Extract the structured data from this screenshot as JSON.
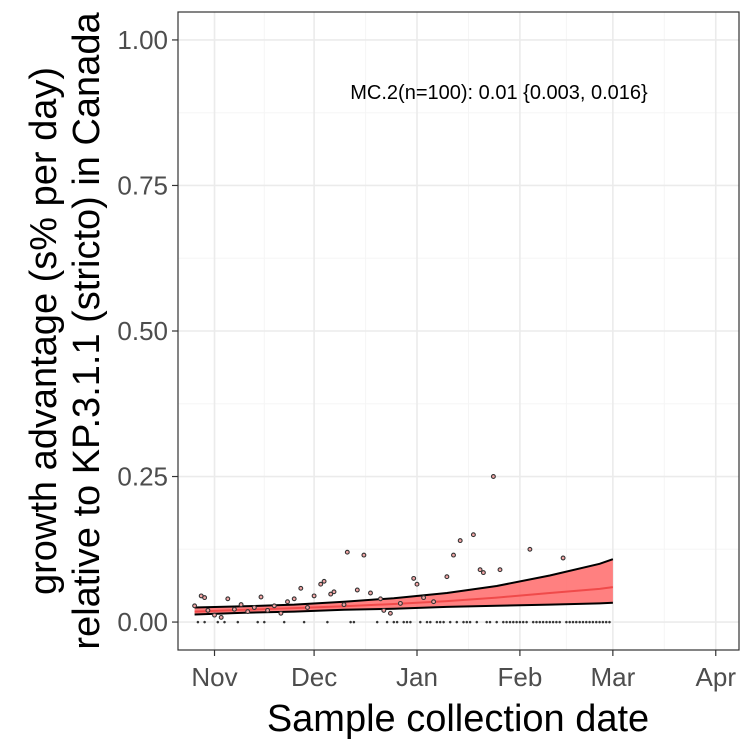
{
  "chart_data": {
    "type": "scatter",
    "xlabel": "Sample collection date",
    "ylabel_lines": [
      "growth advantage (s% per day)",
      "relative to KP.3.1.1 (stricto) in Canada"
    ],
    "annotation": "MC.2(n=100): 0.01 {0.003, 0.016}",
    "x_ticks": [
      {
        "label": "Nov",
        "date": "2024-11-01"
      },
      {
        "label": "Dec",
        "date": "2024-12-01"
      },
      {
        "label": "Jan",
        "date": "2025-01-01"
      },
      {
        "label": "Feb",
        "date": "2025-02-01"
      },
      {
        "label": "Mar",
        "date": "2025-03-01"
      },
      {
        "label": "Apr",
        "date": "2025-04-01"
      }
    ],
    "xlim": [
      "2024-10-21",
      "2025-04-08"
    ],
    "y_ticks": [
      "0.00",
      "0.25",
      "0.50",
      "0.75",
      "1.00"
    ],
    "ylim": [
      -0.048,
      1.048
    ],
    "grid": true,
    "colors": {
      "fit_line": "#f04a4a",
      "ribbon_fill": "#ff6a6a",
      "ribbon_edge": "#000000",
      "point_edge": "#333333",
      "point_fill": "#f3a6a6",
      "grid_major": "#ebebeb",
      "grid_minor": "#f5f5f5",
      "panel_border": "#333333"
    },
    "fit": {
      "x": [
        "2024-10-26",
        "2024-11-10",
        "2024-11-25",
        "2024-12-10",
        "2024-12-25",
        "2025-01-10",
        "2025-01-25",
        "2025-02-10",
        "2025-02-25",
        "2025-03-01"
      ],
      "mean": [
        0.018,
        0.021,
        0.024,
        0.027,
        0.031,
        0.036,
        0.042,
        0.05,
        0.057,
        0.06
      ],
      "lower": [
        0.013,
        0.016,
        0.018,
        0.021,
        0.023,
        0.026,
        0.028,
        0.03,
        0.032,
        0.033
      ],
      "upper": [
        0.025,
        0.027,
        0.03,
        0.035,
        0.041,
        0.05,
        0.062,
        0.08,
        0.1,
        0.108
      ]
    },
    "points": [
      {
        "x": "2024-10-26",
        "y": 0.028
      },
      {
        "x": "2024-10-28",
        "y": 0.045
      },
      {
        "x": "2024-10-29",
        "y": 0.042
      },
      {
        "x": "2024-10-30",
        "y": 0.02
      },
      {
        "x": "2024-11-01",
        "y": 0.012
      },
      {
        "x": "2024-11-03",
        "y": 0.008
      },
      {
        "x": "2024-11-05",
        "y": 0.04
      },
      {
        "x": "2024-11-07",
        "y": 0.022
      },
      {
        "x": "2024-11-09",
        "y": 0.03
      },
      {
        "x": "2024-11-11",
        "y": 0.018
      },
      {
        "x": "2024-11-13",
        "y": 0.025
      },
      {
        "x": "2024-11-15",
        "y": 0.043
      },
      {
        "x": "2024-11-17",
        "y": 0.02
      },
      {
        "x": "2024-11-19",
        "y": 0.028
      },
      {
        "x": "2024-11-21",
        "y": 0.015
      },
      {
        "x": "2024-11-23",
        "y": 0.035
      },
      {
        "x": "2024-11-25",
        "y": 0.04
      },
      {
        "x": "2024-11-27",
        "y": 0.058
      },
      {
        "x": "2024-11-29",
        "y": 0.025
      },
      {
        "x": "2024-12-01",
        "y": 0.045
      },
      {
        "x": "2024-12-03",
        "y": 0.065
      },
      {
        "x": "2024-12-04",
        "y": 0.07
      },
      {
        "x": "2024-12-06",
        "y": 0.048
      },
      {
        "x": "2024-12-07",
        "y": 0.052
      },
      {
        "x": "2024-12-10",
        "y": 0.03
      },
      {
        "x": "2024-12-11",
        "y": 0.12
      },
      {
        "x": "2024-12-14",
        "y": 0.055
      },
      {
        "x": "2024-12-16",
        "y": 0.115
      },
      {
        "x": "2024-12-18",
        "y": 0.05
      },
      {
        "x": "2024-12-21",
        "y": 0.04
      },
      {
        "x": "2024-12-22",
        "y": 0.02
      },
      {
        "x": "2024-12-24",
        "y": 0.015
      },
      {
        "x": "2024-12-27",
        "y": 0.032
      },
      {
        "x": "2024-12-31",
        "y": 0.075
      },
      {
        "x": "2025-01-01",
        "y": 0.065
      },
      {
        "x": "2025-01-03",
        "y": 0.042
      },
      {
        "x": "2025-01-06",
        "y": 0.035
      },
      {
        "x": "2025-01-10",
        "y": 0.078
      },
      {
        "x": "2025-01-12",
        "y": 0.115
      },
      {
        "x": "2025-01-14",
        "y": 0.14
      },
      {
        "x": "2025-01-18",
        "y": 0.15
      },
      {
        "x": "2025-01-20",
        "y": 0.09
      },
      {
        "x": "2025-01-21",
        "y": 0.085
      },
      {
        "x": "2025-01-24",
        "y": 0.25
      },
      {
        "x": "2025-01-26",
        "y": 0.09
      },
      {
        "x": "2025-02-04",
        "y": 0.125
      },
      {
        "x": "2025-02-14",
        "y": 0.11
      },
      {
        "x": "2024-10-27",
        "y": 0.0
      },
      {
        "x": "2024-10-29",
        "y": 0.0
      },
      {
        "x": "2024-11-02",
        "y": 0.0
      },
      {
        "x": "2024-11-04",
        "y": 0.0
      },
      {
        "x": "2024-11-08",
        "y": 0.0
      },
      {
        "x": "2024-11-14",
        "y": 0.0
      },
      {
        "x": "2024-11-16",
        "y": 0.0
      },
      {
        "x": "2024-11-22",
        "y": 0.0
      },
      {
        "x": "2024-11-28",
        "y": 0.0
      },
      {
        "x": "2024-12-05",
        "y": 0.0
      },
      {
        "x": "2024-12-12",
        "y": 0.0
      },
      {
        "x": "2024-12-13",
        "y": 0.0
      },
      {
        "x": "2024-12-20",
        "y": 0.0
      },
      {
        "x": "2024-12-23",
        "y": 0.0
      },
      {
        "x": "2024-12-25",
        "y": 0.0
      },
      {
        "x": "2024-12-26",
        "y": 0.0
      },
      {
        "x": "2024-12-28",
        "y": 0.0
      },
      {
        "x": "2024-12-29",
        "y": 0.0
      },
      {
        "x": "2024-12-30",
        "y": 0.0
      },
      {
        "x": "2025-01-02",
        "y": 0.0
      },
      {
        "x": "2025-01-04",
        "y": 0.0
      },
      {
        "x": "2025-01-05",
        "y": 0.0
      },
      {
        "x": "2025-01-07",
        "y": 0.0
      },
      {
        "x": "2025-01-08",
        "y": 0.0
      },
      {
        "x": "2025-01-09",
        "y": 0.0
      },
      {
        "x": "2025-01-11",
        "y": 0.0
      },
      {
        "x": "2025-01-13",
        "y": 0.0
      },
      {
        "x": "2025-01-15",
        "y": 0.0
      },
      {
        "x": "2025-01-16",
        "y": 0.0
      },
      {
        "x": "2025-01-17",
        "y": 0.0
      },
      {
        "x": "2025-01-19",
        "y": 0.0
      },
      {
        "x": "2025-01-22",
        "y": 0.0
      },
      {
        "x": "2025-01-23",
        "y": 0.0
      },
      {
        "x": "2025-01-25",
        "y": 0.0
      },
      {
        "x": "2025-01-27",
        "y": 0.0
      },
      {
        "x": "2025-01-28",
        "y": 0.0
      },
      {
        "x": "2025-01-29",
        "y": 0.0
      },
      {
        "x": "2025-01-30",
        "y": 0.0
      },
      {
        "x": "2025-01-31",
        "y": 0.0
      },
      {
        "x": "2025-02-01",
        "y": 0.0
      },
      {
        "x": "2025-02-02",
        "y": 0.0
      },
      {
        "x": "2025-02-03",
        "y": 0.0
      },
      {
        "x": "2025-02-05",
        "y": 0.0
      },
      {
        "x": "2025-02-06",
        "y": 0.0
      },
      {
        "x": "2025-02-07",
        "y": 0.0
      },
      {
        "x": "2025-02-08",
        "y": 0.0
      },
      {
        "x": "2025-02-09",
        "y": 0.0
      },
      {
        "x": "2025-02-10",
        "y": 0.0
      },
      {
        "x": "2025-02-11",
        "y": 0.0
      },
      {
        "x": "2025-02-12",
        "y": 0.0
      },
      {
        "x": "2025-02-13",
        "y": 0.0
      },
      {
        "x": "2025-02-15",
        "y": 0.0
      },
      {
        "x": "2025-02-16",
        "y": 0.0
      },
      {
        "x": "2025-02-17",
        "y": 0.0
      },
      {
        "x": "2025-02-18",
        "y": 0.0
      },
      {
        "x": "2025-02-19",
        "y": 0.0
      },
      {
        "x": "2025-02-20",
        "y": 0.0
      },
      {
        "x": "2025-02-21",
        "y": 0.0
      },
      {
        "x": "2025-02-22",
        "y": 0.0
      },
      {
        "x": "2025-02-23",
        "y": 0.0
      },
      {
        "x": "2025-02-24",
        "y": 0.0
      },
      {
        "x": "2025-02-25",
        "y": 0.0
      },
      {
        "x": "2025-02-26",
        "y": 0.0
      },
      {
        "x": "2025-02-27",
        "y": 0.0
      },
      {
        "x": "2025-02-28",
        "y": 0.0
      }
    ]
  }
}
